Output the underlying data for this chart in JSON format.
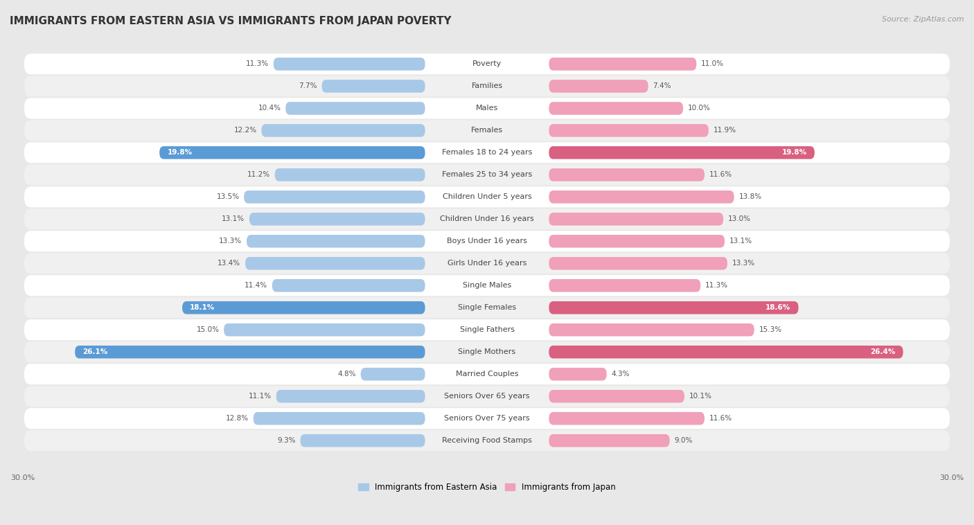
{
  "title": "IMMIGRANTS FROM EASTERN ASIA VS IMMIGRANTS FROM JAPAN POVERTY",
  "source": "Source: ZipAtlas.com",
  "categories": [
    "Poverty",
    "Families",
    "Males",
    "Females",
    "Females 18 to 24 years",
    "Females 25 to 34 years",
    "Children Under 5 years",
    "Children Under 16 years",
    "Boys Under 16 years",
    "Girls Under 16 years",
    "Single Males",
    "Single Females",
    "Single Fathers",
    "Single Mothers",
    "Married Couples",
    "Seniors Over 65 years",
    "Seniors Over 75 years",
    "Receiving Food Stamps"
  ],
  "left_values": [
    11.3,
    7.7,
    10.4,
    12.2,
    19.8,
    11.2,
    13.5,
    13.1,
    13.3,
    13.4,
    11.4,
    18.1,
    15.0,
    26.1,
    4.8,
    11.1,
    12.8,
    9.3
  ],
  "right_values": [
    11.0,
    7.4,
    10.0,
    11.9,
    19.8,
    11.6,
    13.8,
    13.0,
    13.1,
    13.3,
    11.3,
    18.6,
    15.3,
    26.4,
    4.3,
    10.1,
    11.6,
    9.0
  ],
  "left_color": "#a8c8e8",
  "right_color": "#f0a0b8",
  "left_label": "Immigrants from Eastern Asia",
  "right_label": "Immigrants from Japan",
  "xlim": 30.0,
  "bg_color": "#e8e8e8",
  "row_even_color": "#ffffff",
  "row_odd_color": "#f0f0f0",
  "title_fontsize": 11,
  "source_fontsize": 8,
  "cat_fontsize": 8,
  "value_fontsize": 7.5,
  "axis_tick_fontsize": 8,
  "highlight_rows": [
    4,
    11,
    13
  ],
  "highlight_left_color": "#5b9bd5",
  "highlight_right_color": "#d96080"
}
